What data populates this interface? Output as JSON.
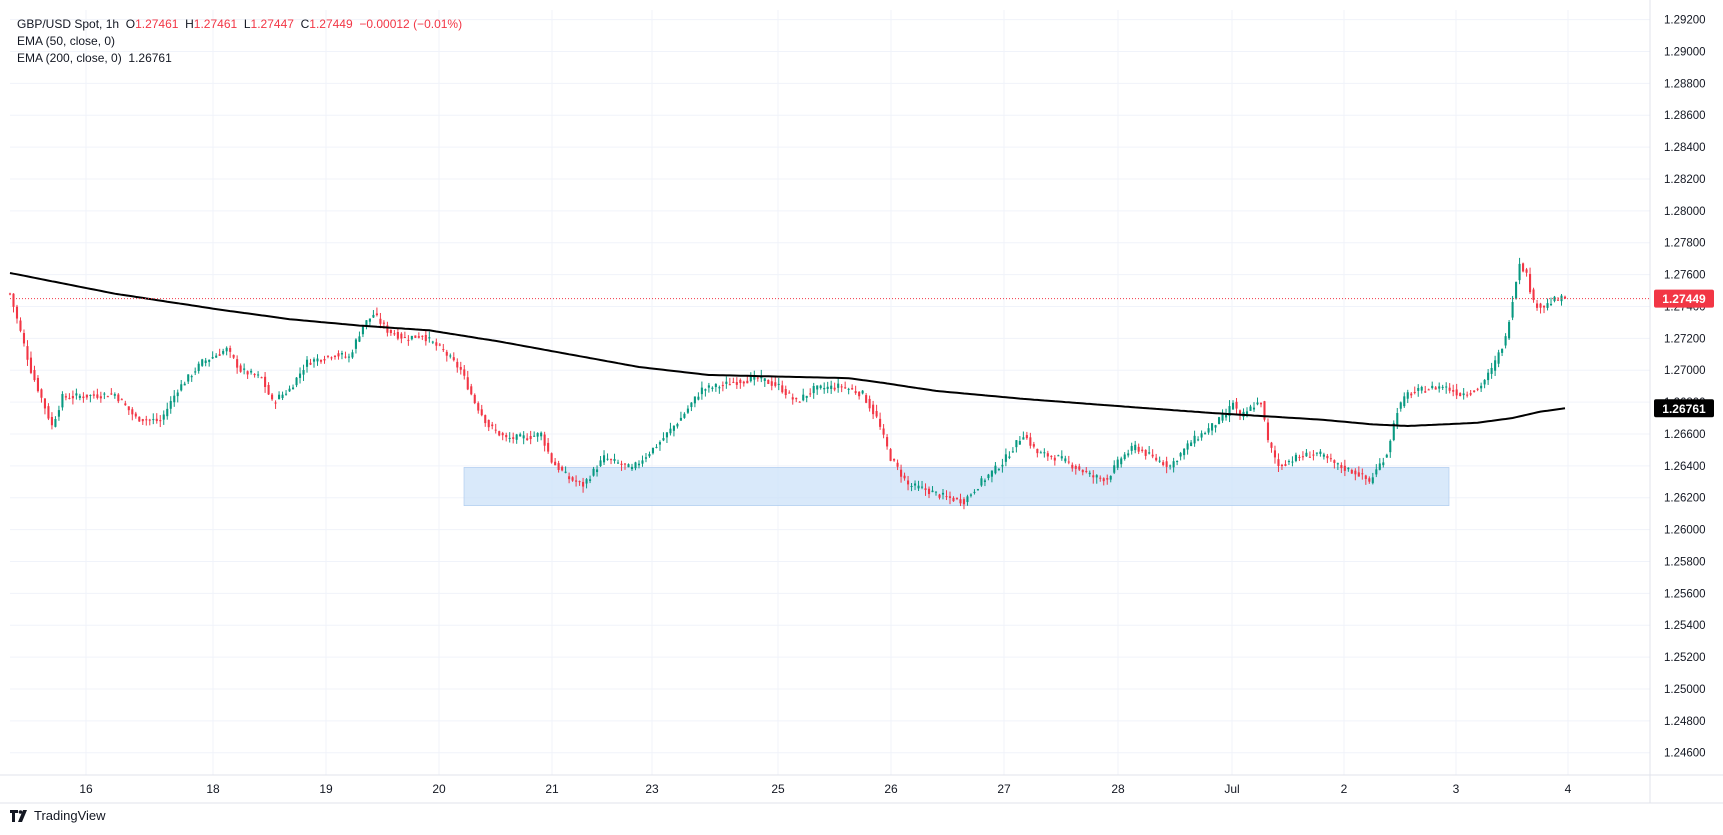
{
  "header": {
    "symbol": "GBP/USD Spot, 1h",
    "open_label": "O",
    "open": "1.27461",
    "high_label": "H",
    "high": "1.27461",
    "low_label": "L",
    "low": "1.27447",
    "close_label": "C",
    "close": "1.27449",
    "change": "−0.00012 (−0.01%)",
    "ema50": "EMA (50, close, 0)",
    "ema200": "EMA (200, close, 0)",
    "ema200_value": "1.26761"
  },
  "footer": {
    "brand": "TradingView"
  },
  "colors": {
    "up": "#089981",
    "down": "#f23645",
    "ema": "#000000",
    "grid": "#f0f3fa",
    "zone_fill": "#c9dff8",
    "price_line": "#f23645",
    "ema_tag": "#000000",
    "price_tag": "#f23645"
  },
  "chart_data": {
    "type": "candlestick",
    "instrument": "GBP/USD Spot",
    "interval": "1h",
    "x_tick_labels": [
      "16",
      "18",
      "19",
      "20",
      "21",
      "23",
      "25",
      "26",
      "27",
      "28",
      "Jul",
      "2",
      "3",
      "4"
    ],
    "y_ticks": [
      1.246,
      1.248,
      1.25,
      1.252,
      1.254,
      1.256,
      1.258,
      1.26,
      1.262,
      1.264,
      1.266,
      1.268,
      1.27,
      1.272,
      1.274,
      1.276,
      1.278,
      1.28,
      1.282,
      1.284,
      1.286,
      1.288,
      1.29,
      1.292
    ],
    "y_tick_labels": [
      "1.24600",
      "1.24800",
      "1.25000",
      "1.25200",
      "1.25400",
      "1.25600",
      "1.25800",
      "1.26000",
      "1.26200",
      "1.26400",
      "1.26600",
      "1.26800",
      "1.27000",
      "1.27200",
      "1.27400",
      "1.27600",
      "1.27800",
      "1.28000",
      "1.28200",
      "1.28400",
      "1.28600",
      "1.28800",
      "1.29000",
      "1.29200"
    ],
    "ylim": [
      1.2446,
      1.2926
    ],
    "last_price": 1.27449,
    "last_price_label": "1.27449",
    "ema200_last": 1.26761,
    "ema200_last_label": "1.26761",
    "support_zone": {
      "low": 1.2615,
      "high": 1.2639,
      "from": "20",
      "to": "3"
    },
    "price_path": [
      [
        0,
        1.2748
      ],
      [
        6,
        1.27
      ],
      [
        12,
        1.2665
      ],
      [
        15,
        1.2683
      ],
      [
        30,
        1.2685
      ],
      [
        36,
        1.267
      ],
      [
        43,
        1.2668
      ],
      [
        48,
        1.2688
      ],
      [
        55,
        1.2705
      ],
      [
        62,
        1.2713
      ],
      [
        66,
        1.27
      ],
      [
        72,
        1.2695
      ],
      [
        75,
        1.268
      ],
      [
        80,
        1.2688
      ],
      [
        85,
        1.2705
      ],
      [
        93,
        1.271
      ],
      [
        97,
        1.2708
      ],
      [
        101,
        1.2728
      ],
      [
        104,
        1.2735
      ],
      [
        108,
        1.2725
      ],
      [
        113,
        1.272
      ],
      [
        118,
        1.2722
      ],
      [
        124,
        1.2712
      ],
      [
        129,
        1.27
      ],
      [
        133,
        1.268
      ],
      [
        137,
        1.2665
      ],
      [
        142,
        1.2657
      ],
      [
        148,
        1.2658
      ],
      [
        152,
        1.266
      ],
      [
        155,
        1.2643
      ],
      [
        160,
        1.2632
      ],
      [
        164,
        1.2628
      ],
      [
        170,
        1.2645
      ],
      [
        178,
        1.2638
      ],
      [
        186,
        1.2655
      ],
      [
        192,
        1.267
      ],
      [
        198,
        1.2688
      ],
      [
        203,
        1.269
      ],
      [
        208,
        1.2693
      ],
      [
        214,
        1.2695
      ],
      [
        220,
        1.269
      ],
      [
        225,
        1.268
      ],
      [
        230,
        1.2688
      ],
      [
        238,
        1.269
      ],
      [
        244,
        1.2685
      ],
      [
        248,
        1.267
      ],
      [
        252,
        1.2645
      ],
      [
        257,
        1.2628
      ],
      [
        262,
        1.2625
      ],
      [
        268,
        1.262
      ],
      [
        273,
        1.2618
      ],
      [
        278,
        1.263
      ],
      [
        284,
        1.2642
      ],
      [
        290,
        1.266
      ],
      [
        294,
        1.2648
      ],
      [
        300,
        1.2645
      ],
      [
        306,
        1.2638
      ],
      [
        310,
        1.2633
      ],
      [
        314,
        1.2632
      ],
      [
        318,
        1.2645
      ],
      [
        322,
        1.2652
      ],
      [
        327,
        1.2645
      ],
      [
        332,
        1.264
      ],
      [
        338,
        1.2655
      ],
      [
        343,
        1.2663
      ],
      [
        348,
        1.2672
      ],
      [
        350,
        1.268
      ],
      [
        352,
        1.267
      ],
      [
        356,
        1.2678
      ],
      [
        358,
        1.268
      ],
      [
        360,
        1.2655
      ],
      [
        363,
        1.264
      ],
      [
        368,
        1.2645
      ],
      [
        374,
        1.2648
      ],
      [
        380,
        1.264
      ],
      [
        386,
        1.2635
      ],
      [
        389,
        1.263
      ],
      [
        394,
        1.2648
      ],
      [
        397,
        1.2675
      ],
      [
        400,
        1.2685
      ],
      [
        405,
        1.2688
      ],
      [
        410,
        1.269
      ],
      [
        415,
        1.2685
      ],
      [
        420,
        1.2688
      ],
      [
        424,
        1.27
      ],
      [
        428,
        1.272
      ],
      [
        430,
        1.2745
      ],
      [
        432,
        1.2768
      ],
      [
        434,
        1.276
      ],
      [
        436,
        1.2742
      ],
      [
        439,
        1.274
      ],
      [
        442,
        1.2744
      ],
      [
        445,
        1.27449
      ]
    ],
    "candle_count": 446,
    "hourly_ohlc": "not individually readable; price path traced from the candles",
    "ema200_path": [
      [
        0,
        1.2761
      ],
      [
        30,
        1.2748
      ],
      [
        60,
        1.2738
      ],
      [
        80,
        1.2732
      ],
      [
        100,
        1.2728
      ],
      [
        120,
        1.2725
      ],
      [
        140,
        1.2718
      ],
      [
        160,
        1.271
      ],
      [
        180,
        1.2702
      ],
      [
        200,
        1.2697
      ],
      [
        220,
        1.2696
      ],
      [
        240,
        1.2695
      ],
      [
        250,
        1.2692
      ],
      [
        265,
        1.2687
      ],
      [
        290,
        1.2682
      ],
      [
        320,
        1.2677
      ],
      [
        345,
        1.2673
      ],
      [
        360,
        1.2671
      ],
      [
        375,
        1.2669
      ],
      [
        390,
        1.2666
      ],
      [
        400,
        1.2665
      ],
      [
        410,
        1.2666
      ],
      [
        420,
        1.2667
      ],
      [
        430,
        1.267
      ],
      [
        438,
        1.2674
      ],
      [
        445,
        1.26761
      ]
    ]
  }
}
